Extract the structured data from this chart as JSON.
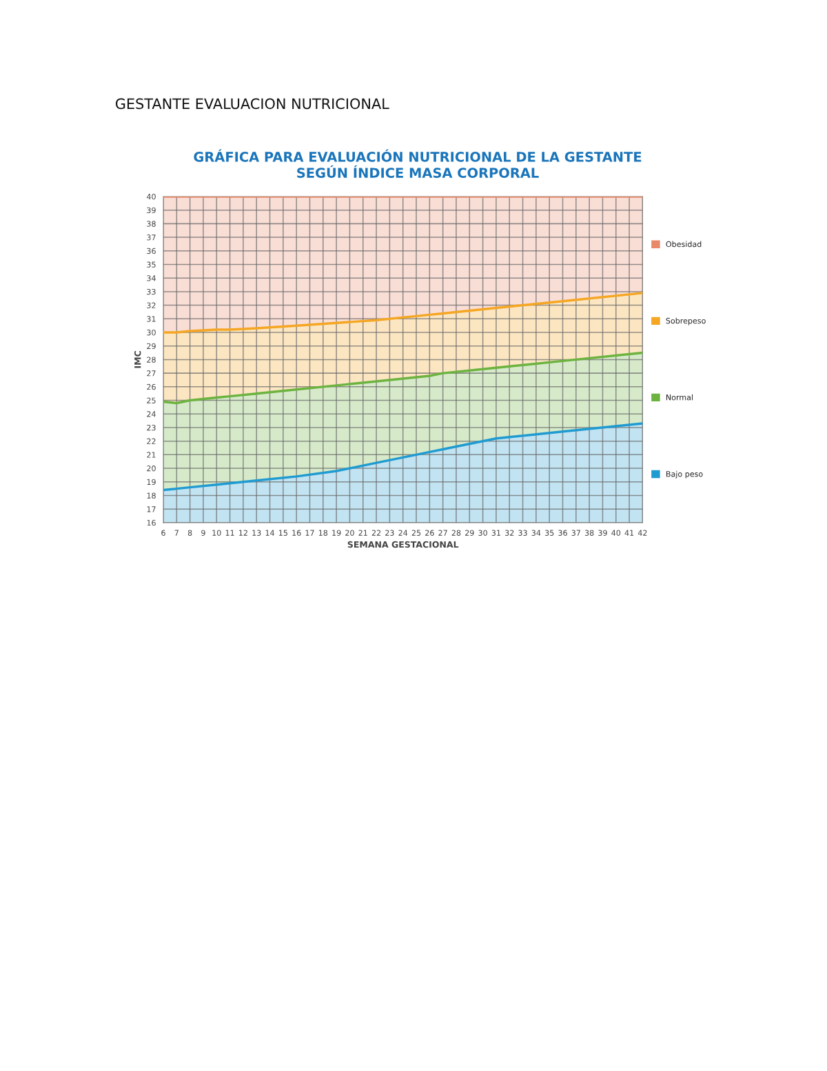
{
  "chart_data": {
    "type": "area",
    "title": "GRÁFICA PARA EVALUACIÓN NUTRICIONAL DE LA GESTANTE\nSEGÚN ÍNDICE MASA CORPORAL",
    "annotations": [
      "GESTANTE EVALUACION NUTRICIONAL"
    ],
    "xlabel": "SEMANA GESTACIONAL",
    "ylabel": "IMC",
    "x": [
      6,
      7,
      8,
      10,
      11,
      13,
      16,
      19,
      22,
      25,
      26,
      27,
      28,
      31,
      32,
      36,
      42
    ],
    "series": [
      {
        "name": "Bajo peso",
        "color": "#1f9bd1",
        "values": [
          18.4,
          18.5,
          18.6,
          18.8,
          18.9,
          19.1,
          19.4,
          19.8,
          20.4,
          21.0,
          21.2,
          21.4,
          21.6,
          22.2,
          22.3,
          22.7,
          23.3
        ]
      },
      {
        "name": "Normal",
        "color": "#6cb33f",
        "values": [
          24.9,
          24.8,
          25.0,
          25.2,
          25.3,
          25.5,
          25.8,
          26.1,
          26.4,
          26.7,
          26.8,
          27.0,
          27.1,
          27.4,
          27.5,
          27.9,
          28.5
        ]
      },
      {
        "name": "Sobrepeso",
        "color": "#f5a623",
        "values": [
          30.0,
          30.0,
          30.1,
          30.2,
          30.2,
          30.3,
          30.5,
          30.7,
          30.9,
          31.2,
          31.3,
          31.4,
          31.5,
          31.8,
          31.9,
          32.3,
          32.9
        ]
      },
      {
        "name": "Obesidad",
        "color": "#e8896a",
        "values": [
          40,
          40,
          40,
          40,
          40,
          40,
          40,
          40,
          40,
          40,
          40,
          40,
          40,
          40,
          40,
          40,
          40
        ]
      }
    ],
    "xlim": [
      6,
      42
    ],
    "xticks": [
      6,
      7,
      8,
      9,
      10,
      11,
      12,
      13,
      14,
      15,
      16,
      17,
      18,
      19,
      20,
      21,
      22,
      23,
      24,
      25,
      26,
      27,
      28,
      29,
      30,
      31,
      32,
      33,
      34,
      35,
      36,
      37,
      38,
      39,
      40,
      41,
      42
    ],
    "ylim": [
      16,
      40
    ],
    "yticks": [
      16,
      17,
      18,
      19,
      20,
      21,
      22,
      23,
      24,
      25,
      26,
      27,
      28,
      29,
      30,
      31,
      32,
      33,
      34,
      35,
      36,
      37,
      38,
      39,
      40
    ],
    "grid": true,
    "legend": "right",
    "line_style": "solid",
    "marker": "none"
  }
}
